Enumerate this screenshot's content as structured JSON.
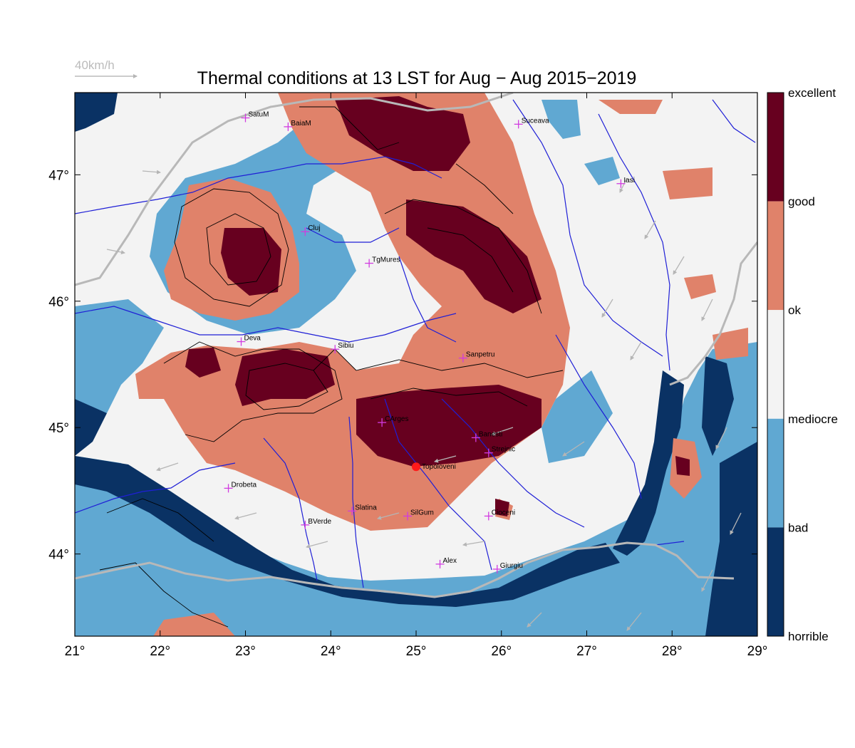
{
  "title": "Thermal conditions at 13 LST for Aug − Aug  2015−2019",
  "wind_reference": {
    "label": "40km/h"
  },
  "axes": {
    "lon_ticks": [
      "21°",
      "22°",
      "23°",
      "24°",
      "25°",
      "26°",
      "27°",
      "28°",
      "29°"
    ],
    "lat_ticks": [
      "44°",
      "45°",
      "46°",
      "47°"
    ],
    "lon_range": [
      21,
      29
    ],
    "lat_range": [
      43.35,
      47.65
    ]
  },
  "colorbar": {
    "labels": [
      "excellent",
      "good",
      "ok",
      "mediocre",
      "bad",
      "horrible"
    ],
    "colors": [
      "#67001f",
      "#e0826a",
      "#f3f3f3",
      "#60a8d2",
      "#0a3264"
    ]
  },
  "colors": {
    "excellent": "#67001f",
    "good": "#e0826a",
    "ok": "#f3f3f3",
    "mediocre": "#60a8d2",
    "bad": "#0a3264",
    "river": "#1f1fd6",
    "border": "#b8b8b8",
    "wind": "#b5b5b5",
    "contour": "#000000",
    "city_marker": "#d13be0",
    "site_marker": "#ff1a1a"
  },
  "cities": [
    {
      "name": "SatuM",
      "lon": 23.0,
      "lat": 47.45
    },
    {
      "name": "BaiaM",
      "lon": 23.5,
      "lat": 47.38
    },
    {
      "name": "Suceava",
      "lon": 26.2,
      "lat": 47.4
    },
    {
      "name": "Iasi",
      "lon": 27.4,
      "lat": 46.93
    },
    {
      "name": "Cluj",
      "lon": 23.7,
      "lat": 46.55
    },
    {
      "name": "TgMures",
      "lon": 24.45,
      "lat": 46.3
    },
    {
      "name": "Deva",
      "lon": 22.95,
      "lat": 45.68
    },
    {
      "name": "Sibiu",
      "lon": 24.05,
      "lat": 45.62
    },
    {
      "name": "Sanpetru",
      "lon": 25.55,
      "lat": 45.55
    },
    {
      "name": "CArges",
      "lon": 24.6,
      "lat": 45.04
    },
    {
      "name": "Banesti",
      "lon": 25.7,
      "lat": 44.92
    },
    {
      "name": "Strejnic",
      "lon": 25.85,
      "lat": 44.8
    },
    {
      "name": "Drobeta",
      "lon": 22.8,
      "lat": 44.52
    },
    {
      "name": "Slatina",
      "lon": 24.25,
      "lat": 44.34
    },
    {
      "name": "SilGum",
      "lon": 24.9,
      "lat": 44.3
    },
    {
      "name": "Cioceni",
      "lon": 25.85,
      "lat": 44.3
    },
    {
      "name": "BVerde",
      "lon": 23.7,
      "lat": 44.23
    },
    {
      "name": "Alex",
      "lon": 25.28,
      "lat": 43.92
    },
    {
      "name": "Giurgiu",
      "lon": 25.95,
      "lat": 43.88
    }
  ],
  "site": {
    "name": "Topoloveni",
    "lon": 25.0,
    "lat": 44.69
  }
}
